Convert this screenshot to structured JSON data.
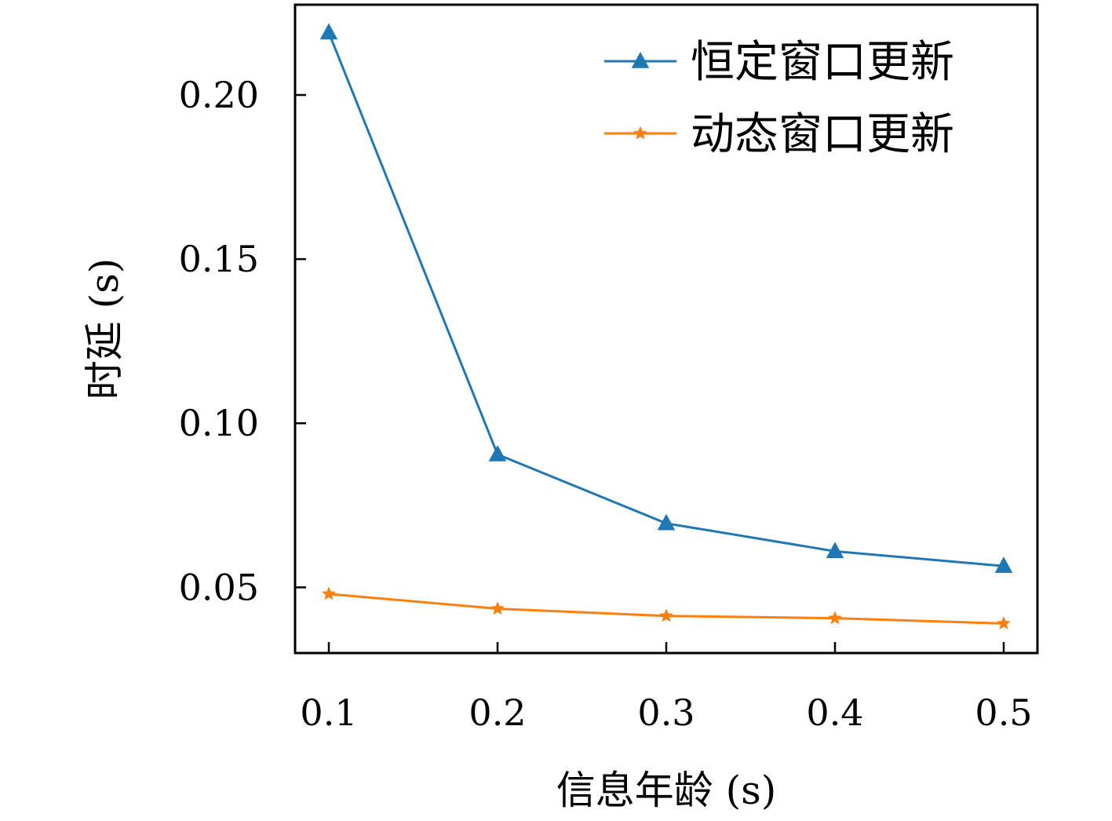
{
  "chart_data": {
    "type": "line",
    "x": [
      0.1,
      0.2,
      0.3,
      0.4,
      0.5
    ],
    "x_tick_labels": [
      "0.1",
      "0.2",
      "0.3",
      "0.4",
      "0.5"
    ],
    "y_ticks": [
      0.05,
      0.1,
      0.15,
      0.2
    ],
    "y_tick_labels": [
      "0.05",
      "0.10",
      "0.15",
      "0.20"
    ],
    "xlim": [
      0.08,
      0.52
    ],
    "ylim": [
      0.03,
      0.2275
    ],
    "xlabel": "信息年龄 (s)",
    "ylabel": "时延 (s)",
    "grid": false,
    "legend_position": "top-right",
    "series": [
      {
        "name": "恒定窗口更新",
        "color": "#1f77b4",
        "marker": "triangle",
        "values": [
          0.219,
          0.0905,
          0.0695,
          0.061,
          0.0565
        ]
      },
      {
        "name": "动态窗口更新",
        "color": "#ff7f0e",
        "marker": "star",
        "values": [
          0.048,
          0.0435,
          0.0413,
          0.0406,
          0.039
        ]
      }
    ]
  }
}
